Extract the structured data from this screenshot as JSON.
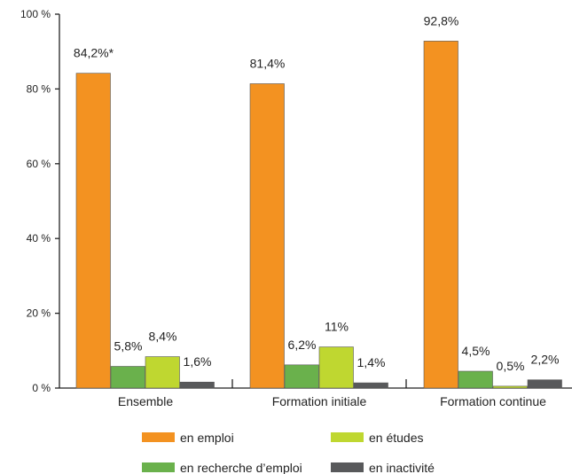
{
  "chart_data": {
    "type": "bar",
    "categories": [
      "Ensemble",
      "Formation initiale",
      "Formation continue"
    ],
    "series": [
      {
        "name": "en emploi",
        "color": "#f39221",
        "values": [
          84.2,
          81.4,
          92.8
        ],
        "labels": [
          "84,2%*",
          "81,4%",
          "92,8%"
        ]
      },
      {
        "name": "en recherche d’emploi",
        "color": "#6ab14c",
        "values": [
          5.8,
          6.2,
          4.5
        ],
        "labels": [
          "5,8%",
          "6,2%",
          "4,5%"
        ]
      },
      {
        "name": "en études",
        "color": "#bfd730",
        "values": [
          8.4,
          11,
          0.5
        ],
        "labels": [
          "8,4%",
          "11%",
          "0,5%"
        ]
      },
      {
        "name": "en inactivité",
        "color": "#58595b",
        "values": [
          1.6,
          1.4,
          2.2
        ],
        "labels": [
          "1,6%",
          "1,4%",
          "2,2%"
        ]
      }
    ],
    "ylim": [
      0,
      100
    ],
    "yticks": [
      {
        "value": 0,
        "label": "0 %"
      },
      {
        "value": 20,
        "label": "20 %"
      },
      {
        "value": 40,
        "label": "40 %"
      },
      {
        "value": 60,
        "label": "60 %"
      },
      {
        "value": 80,
        "label": "80 %"
      },
      {
        "value": 100,
        "label": "100 %"
      }
    ],
    "grid": false,
    "legend_position": "bottom"
  }
}
